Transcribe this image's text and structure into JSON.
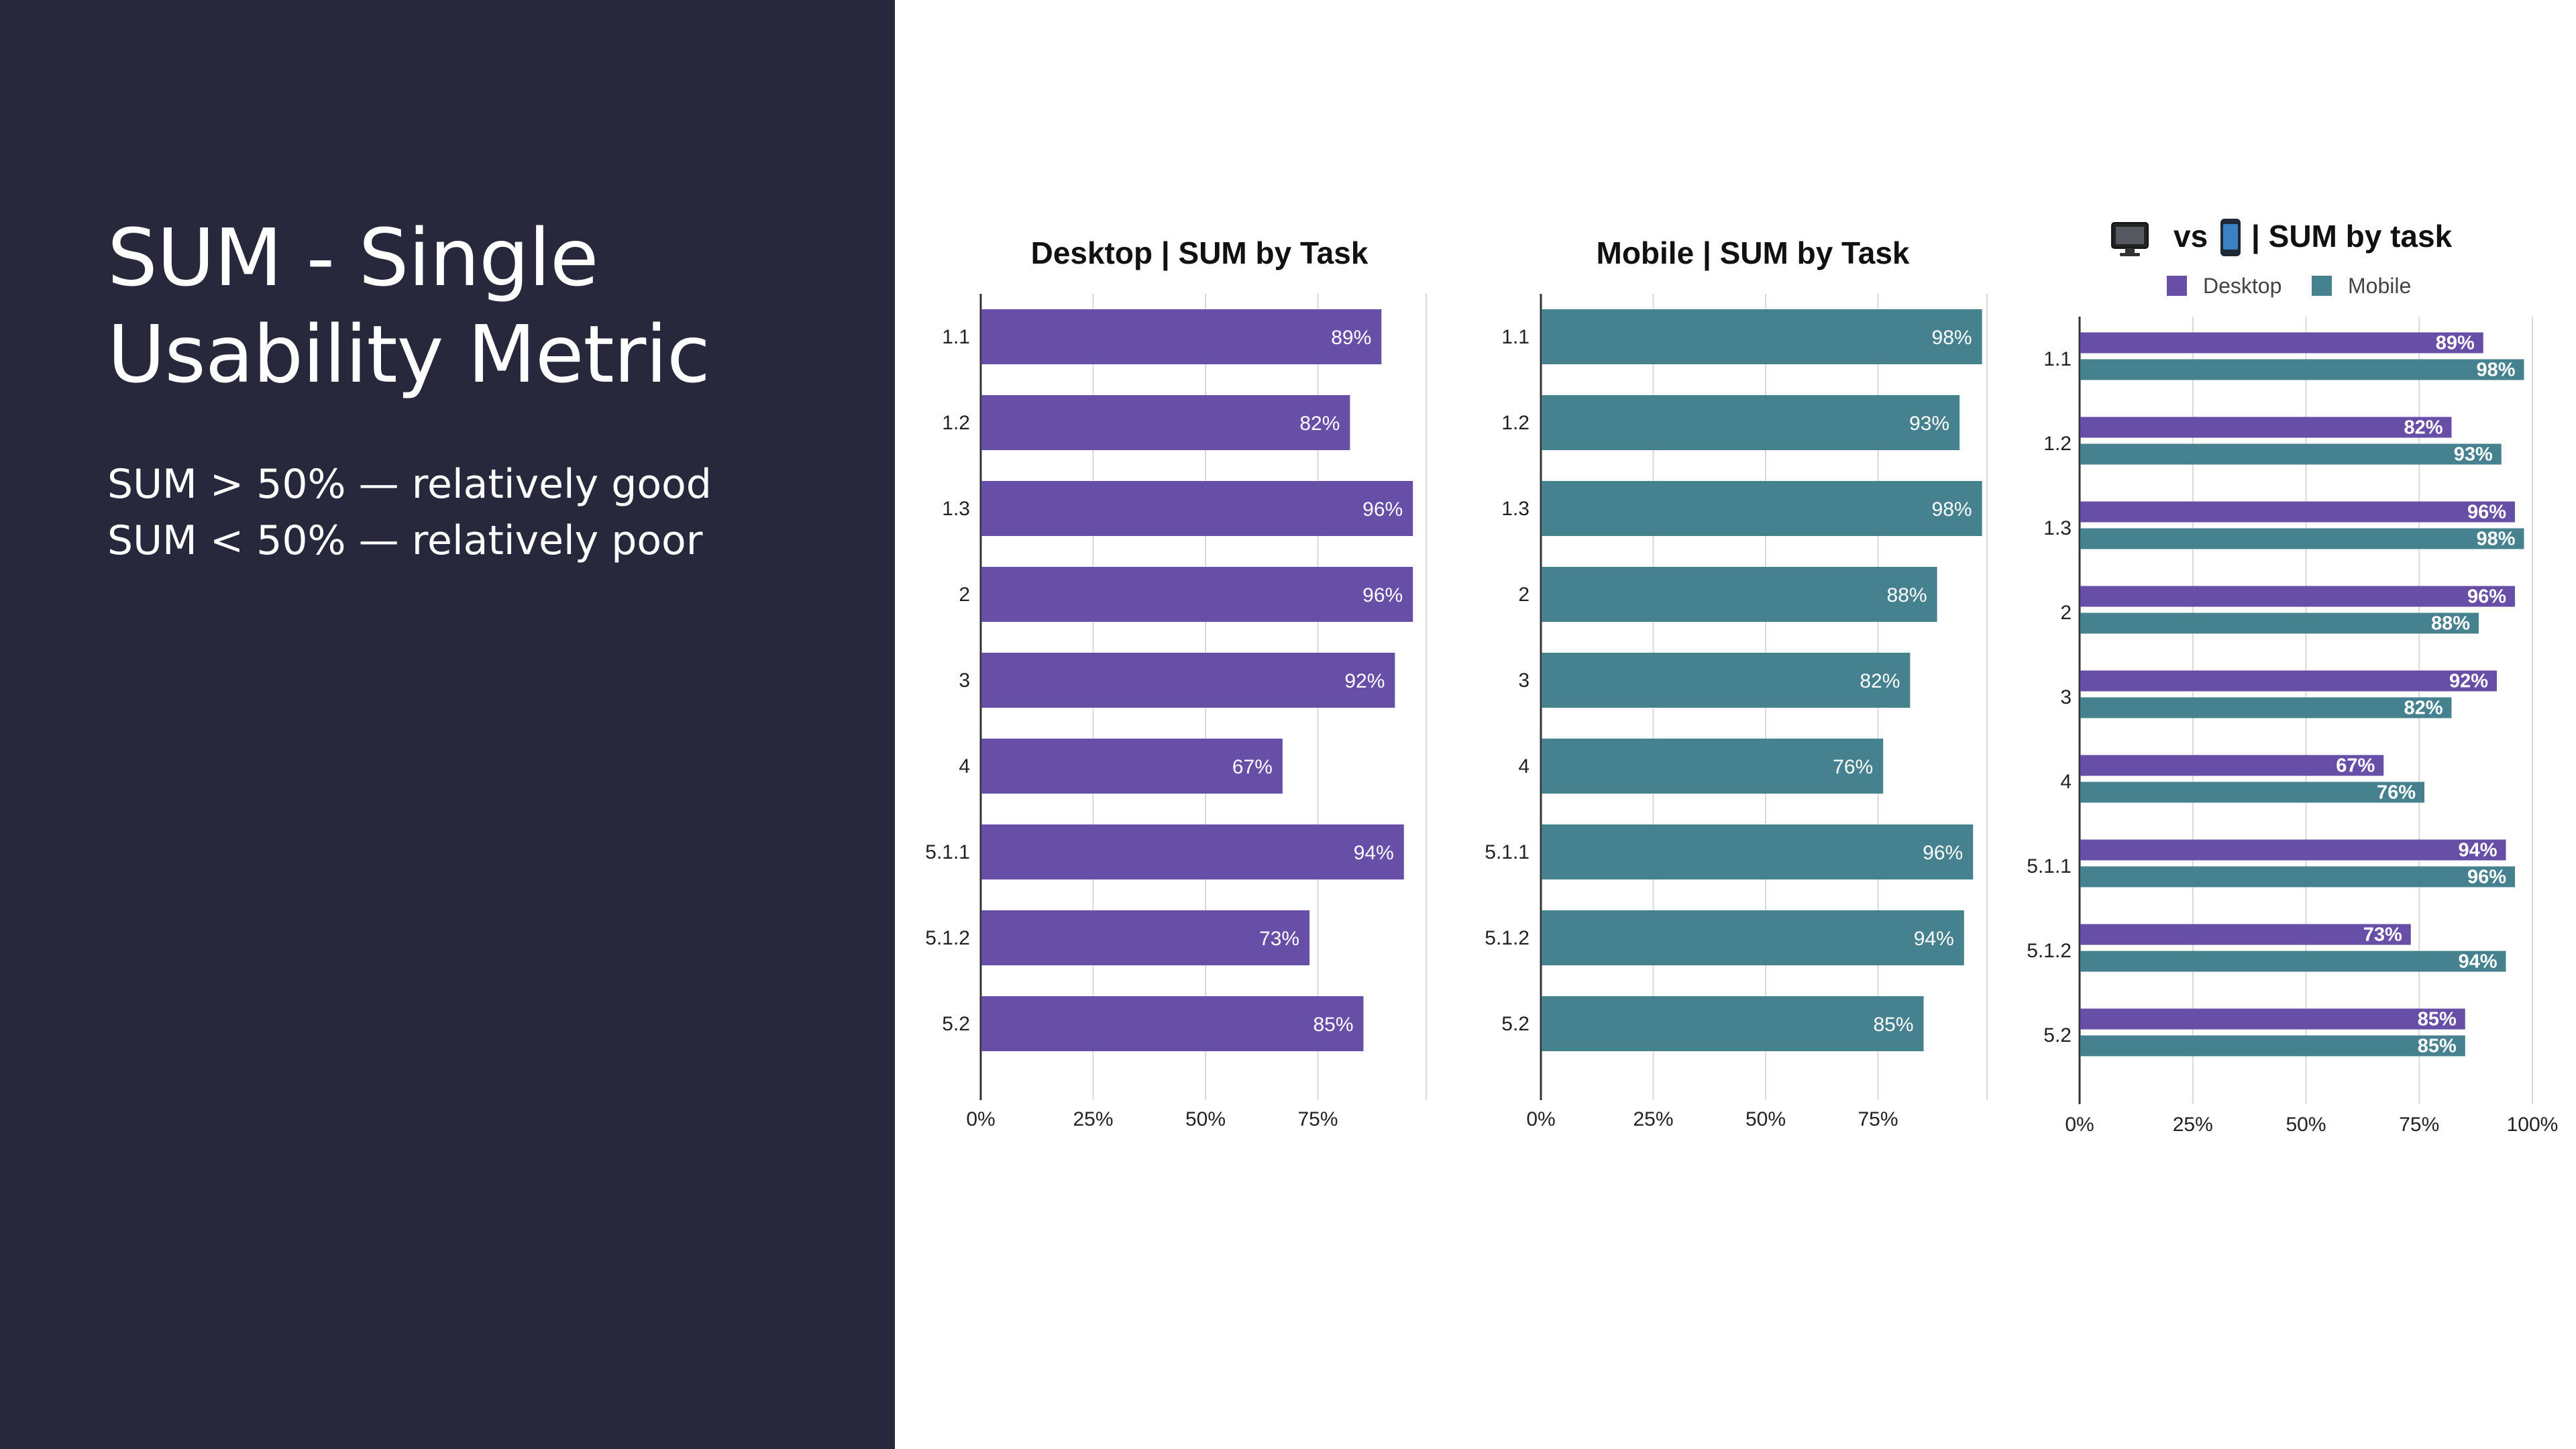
{
  "slide": {
    "title": "SUM - Single Usability Metric",
    "rule_good": "SUM > 50% — relatively good",
    "rule_poor": "SUM < 50% — relatively poor"
  },
  "colors": {
    "background_left": "#27283b",
    "desktop": "#674ea7",
    "mobile": "#45818e",
    "grid": "#d9d9d9",
    "axis": "#333333"
  },
  "chart_data": [
    {
      "id": "desktop",
      "type": "bar",
      "orientation": "horizontal",
      "title": "Desktop | SUM by Task",
      "categories": [
        "1.1",
        "1.2",
        "1.3",
        "2",
        "3",
        "4",
        "5.1.1",
        "5.1.2",
        "5.2"
      ],
      "series": [
        {
          "name": "Desktop",
          "color": "#674ea7",
          "values": [
            89,
            82,
            96,
            96,
            92,
            67,
            94,
            73,
            85
          ],
          "labels": [
            "89%",
            "82%",
            "96%",
            "96%",
            "92%",
            "67%",
            "94%",
            "73%",
            "85%"
          ]
        }
      ],
      "ticks": [
        "0%",
        "25%",
        "50%",
        "75%"
      ],
      "xlim": [
        0,
        100
      ],
      "grid": true
    },
    {
      "id": "mobile",
      "type": "bar",
      "orientation": "horizontal",
      "title": "Mobile | SUM by Task",
      "categories": [
        "1.1",
        "1.2",
        "1.3",
        "2",
        "3",
        "4",
        "5.1.1",
        "5.1.2",
        "5.2"
      ],
      "series": [
        {
          "name": "Mobile",
          "color": "#45818e",
          "values": [
            98,
            93,
            98,
            88,
            82,
            76,
            96,
            94,
            85
          ],
          "labels": [
            "98%",
            "93%",
            "98%",
            "88%",
            "82%",
            "76%",
            "96%",
            "94%",
            "85%"
          ]
        }
      ],
      "ticks": [
        "0%",
        "25%",
        "50%",
        "75%"
      ],
      "xlim": [
        0,
        100
      ],
      "grid": true
    },
    {
      "id": "compare",
      "type": "bar",
      "orientation": "horizontal",
      "title_prefix_icon": "desktop-monitor-icon",
      "title_vs": "vs",
      "title_mid_icon": "mobile-phone-icon",
      "title_suffix": "| SUM by task",
      "legend_position": "top",
      "categories": [
        "1.1",
        "1.2",
        "1.3",
        "2",
        "3",
        "4",
        "5.1.1",
        "5.1.2",
        "5.2"
      ],
      "series": [
        {
          "name": "Desktop",
          "color": "#674ea7",
          "values": [
            89,
            82,
            96,
            96,
            92,
            67,
            94,
            73,
            85
          ],
          "labels": [
            "89%",
            "82%",
            "96%",
            "96%",
            "92%",
            "67%",
            "94%",
            "73%",
            "85%"
          ]
        },
        {
          "name": "Mobile",
          "color": "#45818e",
          "values": [
            98,
            93,
            98,
            88,
            82,
            76,
            96,
            94,
            85
          ],
          "labels": [
            "98%",
            "93%",
            "98%",
            "88%",
            "82%",
            "76%",
            "96%",
            "94%",
            "85%"
          ]
        }
      ],
      "ticks": [
        "0%",
        "25%",
        "50%",
        "75%",
        "100%"
      ],
      "xlim": [
        0,
        100
      ],
      "grid": true
    }
  ]
}
